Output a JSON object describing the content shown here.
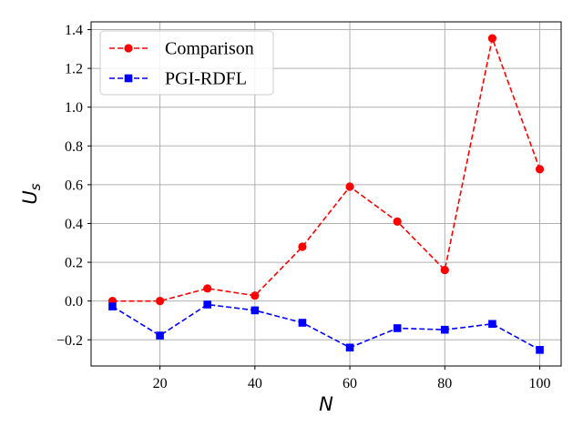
{
  "chart_data": {
    "type": "line",
    "title": "",
    "xlabel": "N",
    "ylabel": "U",
    "ylabel_sub": "s",
    "xlim": [
      5.5,
      104.5
    ],
    "ylim": [
      -0.335,
      1.44
    ],
    "xticks": [
      20,
      40,
      60,
      80,
      100
    ],
    "xtick_labels": [
      "20",
      "40",
      "60",
      "80",
      "100"
    ],
    "yticks": [
      -0.2,
      0.0,
      0.2,
      0.4,
      0.6,
      0.8,
      1.0,
      1.2,
      1.4
    ],
    "ytick_labels": [
      "−0.2",
      "0.0",
      "0.2",
      "0.4",
      "0.6",
      "0.8",
      "1.0",
      "1.2",
      "1.4"
    ],
    "grid": true,
    "legend_position": "top-left",
    "x": [
      10,
      20,
      30,
      40,
      50,
      60,
      70,
      80,
      90,
      100
    ],
    "series": [
      {
        "name": "Comparison",
        "color": "#ff0000",
        "marker": "circle",
        "linestyle": "dashed",
        "values": [
          0.0,
          0.0,
          0.065,
          0.028,
          0.28,
          0.59,
          0.41,
          0.16,
          1.355,
          0.68
        ]
      },
      {
        "name": "PGI-RDFL",
        "color": "#0000ff",
        "marker": "square",
        "linestyle": "dashed",
        "values": [
          -0.028,
          -0.178,
          -0.018,
          -0.048,
          -0.112,
          -0.24,
          -0.14,
          -0.148,
          -0.118,
          -0.252
        ]
      }
    ]
  }
}
